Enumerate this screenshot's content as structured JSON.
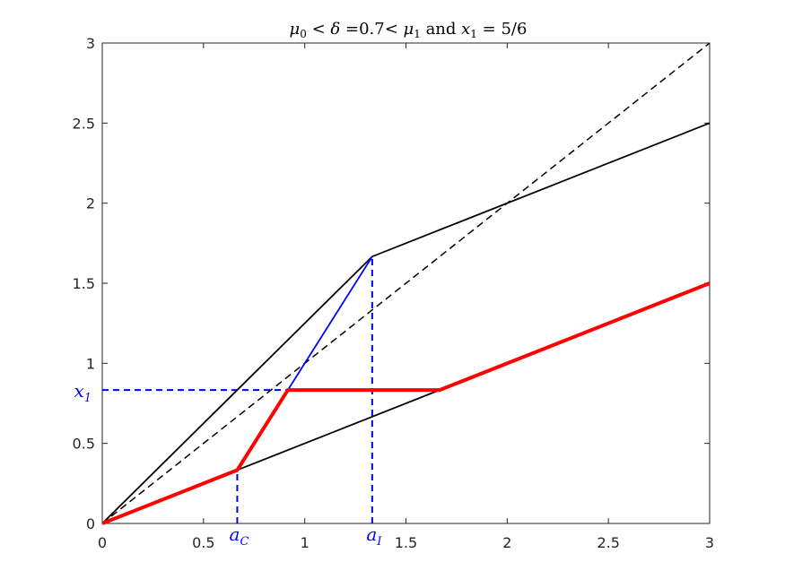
{
  "chart_data": {
    "type": "line",
    "title": {
      "mu0": "μ",
      "mu0_sub": "0",
      "lt1": " < ",
      "delta": "δ",
      "delta_value": " =0.7< ",
      "mu1": "μ",
      "mu1_sub": "1",
      "and": " and ",
      "x1": "x",
      "x1_sub": "1",
      "rhs": " = 5/6"
    },
    "xlabel": "",
    "ylabel": "",
    "xlim": [
      0,
      3
    ],
    "ylim": [
      0,
      3
    ],
    "x_ticks": [
      "0",
      "0.5",
      "1",
      "1.5",
      "2",
      "2.5",
      "3"
    ],
    "y_ticks": [
      "0",
      "0.5",
      "1",
      "1.5",
      "2",
      "2.5",
      "3"
    ],
    "grid": false,
    "series": [
      {
        "style": "dashed",
        "color": "#000000",
        "x": [
          0,
          3
        ],
        "y": [
          0,
          3
        ]
      },
      {
        "style": "solid",
        "color": "#000000",
        "x": [
          0,
          1.3333,
          3
        ],
        "y": [
          0,
          1.6667,
          2.5
        ]
      },
      {
        "style": "solid",
        "color": "#000000",
        "x": [
          0,
          3
        ],
        "y": [
          0,
          1.5
        ]
      },
      {
        "style": "solid",
        "color": "#0000ff",
        "x": [
          0.6667,
          1.3333
        ],
        "y": [
          0.3333,
          1.6667
        ]
      },
      {
        "style": "thick",
        "color": "#ff0000",
        "x": [
          0,
          0.6667,
          0.9167,
          1.6667,
          3
        ],
        "y": [
          0,
          0.3333,
          0.8333,
          0.8333,
          1.5
        ]
      }
    ],
    "reference_lines": [
      {
        "color": "#0000ff",
        "style": "dashed",
        "x": [
          0,
          0.9167
        ],
        "y": [
          0.8333,
          0.8333
        ]
      },
      {
        "color": "#0000ff",
        "style": "dashed",
        "x": [
          0.6667,
          0.6667
        ],
        "y": [
          0,
          0.3333
        ]
      },
      {
        "color": "#0000ff",
        "style": "dashed",
        "x": [
          1.3333,
          1.3333
        ],
        "y": [
          0,
          1.6667
        ]
      }
    ],
    "annotations": [
      {
        "name": "x1",
        "base": "x",
        "sub": "1",
        "x": 0,
        "y": 0.8333,
        "anchor": "y-axis"
      },
      {
        "name": "aC",
        "base": "a",
        "sub": "C",
        "x": 0.6667,
        "y": 0,
        "anchor": "x-axis"
      },
      {
        "name": "aI",
        "base": "a",
        "sub": "I",
        "x": 1.3333,
        "y": 0,
        "anchor": "x-axis"
      }
    ]
  }
}
